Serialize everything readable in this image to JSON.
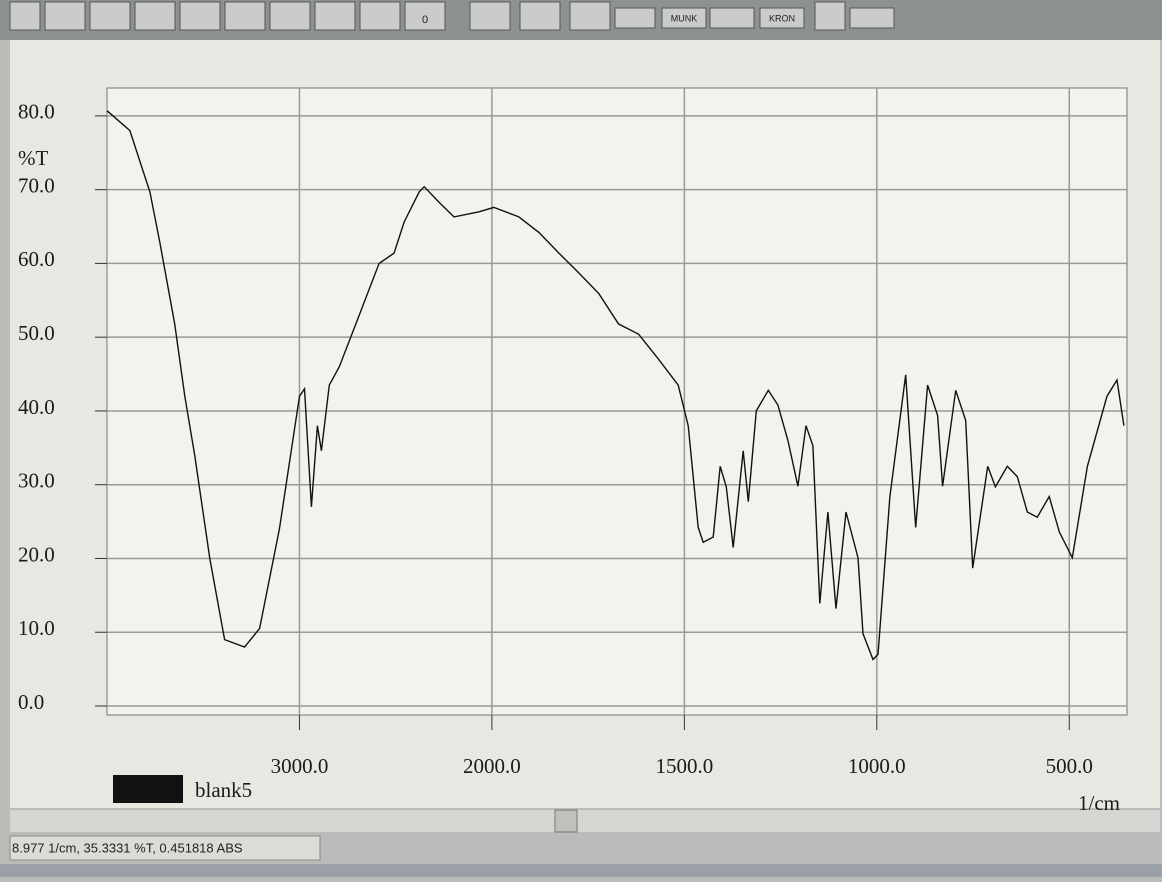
{
  "toolbar": {
    "buttons": [
      "0",
      "MUNK",
      "KRON"
    ]
  },
  "chart_data": {
    "type": "line",
    "y_axis_label": "%T",
    "x_axis_label": "1/cm",
    "x_scale_break": 2000,
    "x_scale_factor": 2,
    "xlim": [
      4000,
      350
    ],
    "xticks": [
      {
        "value": 3000,
        "label": "3000.0"
      },
      {
        "value": 2000,
        "label": "2000.0"
      },
      {
        "value": 1500,
        "label": "1500.0"
      },
      {
        "value": 1000,
        "label": "1000.0"
      },
      {
        "value": 500,
        "label": "500.0"
      }
    ],
    "ylim": [
      0,
      85
    ],
    "yticks": [
      {
        "value": 0,
        "label": "0.0"
      },
      {
        "value": 10,
        "label": "10.0"
      },
      {
        "value": 20,
        "label": "20.0"
      },
      {
        "value": 30,
        "label": "30.0"
      },
      {
        "value": 40,
        "label": "40.0"
      },
      {
        "value": 50,
        "label": "50.0"
      },
      {
        "value": 60,
        "label": "60.0"
      },
      {
        "value": 70,
        "label": "70.0"
      },
      {
        "value": 80,
        "label": "80.0"
      }
    ],
    "grid": true,
    "series": [
      {
        "name": "blank5",
        "color": "#111111",
        "x": [
          4000,
          3881,
          3777,
          3725,
          3648,
          3596,
          3544,
          3466,
          3389,
          3285,
          3207,
          3104,
          3000,
          2974,
          2938,
          2907,
          2886,
          2845,
          2793,
          2689,
          2586,
          2508,
          2456,
          2378,
          2352,
          2275,
          2197,
          2067,
          1995,
          1930,
          1878,
          1826,
          1774,
          1722,
          1671,
          1619,
          1567,
          1516,
          1490,
          1464,
          1451,
          1425,
          1407,
          1391,
          1373,
          1347,
          1334,
          1313,
          1282,
          1257,
          1231,
          1205,
          1184,
          1166,
          1148,
          1127,
          1106,
          1080,
          1049,
          1036,
          1010,
          997,
          966,
          925,
          899,
          868,
          842,
          829,
          795,
          769,
          751,
          712,
          692,
          661,
          635,
          609,
          583,
          552,
          526,
          492,
          453,
          402,
          376,
          358
        ],
        "values": [
          80.7,
          78,
          69.7,
          62.8,
          51.8,
          42,
          33.9,
          20,
          9,
          8,
          10.5,
          24,
          42,
          43,
          27,
          38,
          34.6,
          43.5,
          46,
          53,
          60,
          61.4,
          65.6,
          69.7,
          70.4,
          68.3,
          66.3,
          67,
          67.6,
          66.3,
          64.2,
          61.4,
          58.7,
          55.9,
          51.8,
          50.4,
          47,
          43.5,
          38,
          24.2,
          22.2,
          22.9,
          32.5,
          29.7,
          21.5,
          34.6,
          27.7,
          40,
          42.8,
          40.8,
          36,
          29.8,
          38,
          35.3,
          13.9,
          26.3,
          13.2,
          26.3,
          20.1,
          9.8,
          6.3,
          7,
          28.4,
          44.9,
          24.2,
          43.5,
          39.4,
          29.8,
          42.8,
          38.7,
          18.7,
          32.5,
          29.7,
          32.5,
          31.1,
          26.3,
          25.6,
          28.4,
          23.6,
          20.1,
          32.5,
          42,
          44.2,
          38
        ]
      }
    ]
  },
  "status_bar": "8.977 1/cm, 35.3331 %T, 0.451818 ABS"
}
